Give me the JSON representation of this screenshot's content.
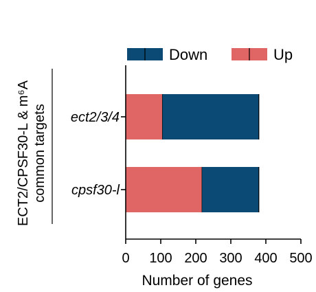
{
  "chart_data": {
    "type": "bar",
    "orientation": "horizontal",
    "stacked": true,
    "categories": [
      "ect2/3/4",
      "cpsf30-l"
    ],
    "series": [
      {
        "name": "Up",
        "values": [
          105,
          218
        ],
        "color": "#e06666"
      },
      {
        "name": "Down",
        "values": [
          275,
          162
        ],
        "color": "#0b4a74"
      }
    ],
    "legend_order": [
      "Down",
      "Up"
    ],
    "xlabel": "Number of genes",
    "ylabel_line1": "ECT2/CPSF30-L & m⁶A",
    "ylabel_line2": "common targets",
    "xlim": [
      0,
      500
    ],
    "xticks": [
      "0",
      "100",
      "200",
      "300",
      "400",
      "500"
    ],
    "legend_position": "top",
    "grid": false
  }
}
